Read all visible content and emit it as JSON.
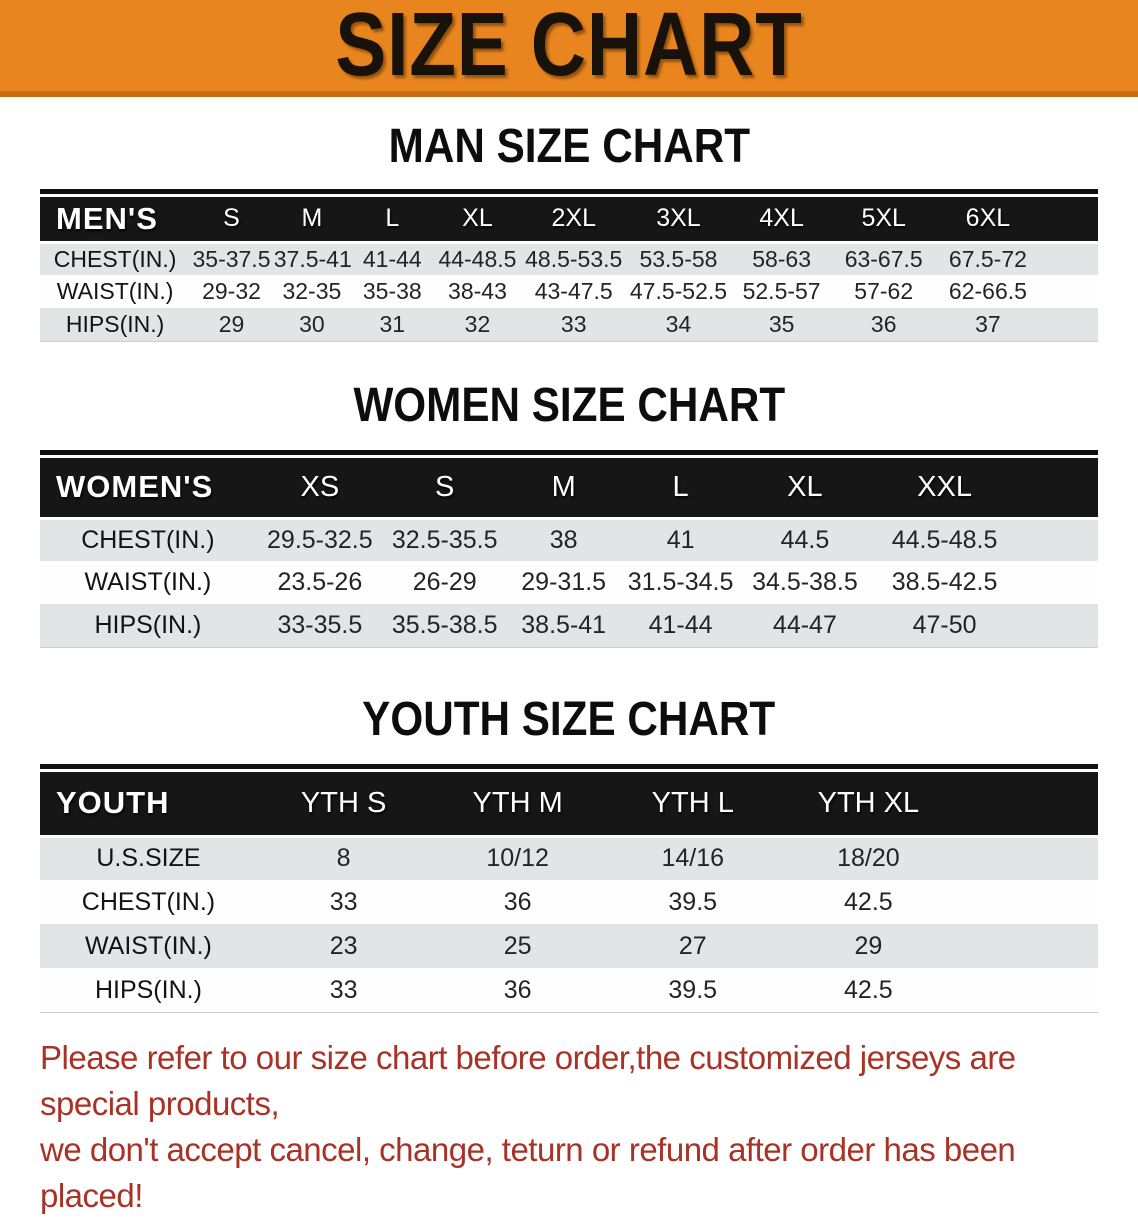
{
  "banner": {
    "title": "SIZE CHART",
    "colors": {
      "background": "#E8851E",
      "edge": "#C96E10",
      "text": "#19120B"
    }
  },
  "table_colors": {
    "header_bg": "#161616",
    "header_text": "#FFFFFF",
    "row_gray": "#E3E4E5",
    "row_white": "#FEFEFE"
  },
  "sections": {
    "men": {
      "heading": "MAN SIZE CHART",
      "table": {
        "header": [
          "MEN'S",
          "S",
          "M",
          "L",
          "XL",
          "2XL",
          "3XL",
          "4XL",
          "5XL",
          "6XL"
        ],
        "rows": [
          {
            "label": "CHEST(IN.)",
            "values": [
              "35-37.5",
              "37.5-41",
              "41-44",
              "44-48.5",
              "48.5-53.5",
              "53.5-58",
              "58-63",
              "63-67.5",
              "67.5-72"
            ]
          },
          {
            "label": "WAIST(IN.)",
            "values": [
              "29-32",
              "32-35",
              "35-38",
              "38-43",
              "43-47.5",
              "47.5-52.5",
              "52.5-57",
              "57-62",
              "62-66.5"
            ]
          },
          {
            "label": "HIPS(IN.)",
            "values": [
              "29",
              "30",
              "31",
              "32",
              "33",
              "34",
              "35",
              "36",
              "37"
            ]
          }
        ]
      }
    },
    "women": {
      "heading": "WOMEN SIZE CHART",
      "table": {
        "header": [
          "WOMEN'S",
          "XS",
          "S",
          "M",
          "L",
          "XL",
          "XXL"
        ],
        "rows": [
          {
            "label": "CHEST(IN.)",
            "values": [
              "29.5-32.5",
              "32.5-35.5",
              "38",
              "41",
              "44.5",
              "44.5-48.5"
            ]
          },
          {
            "label": "WAIST(IN.)",
            "values": [
              "23.5-26",
              "26-29",
              "29-31.5",
              "31.5-34.5",
              "34.5-38.5",
              "38.5-42.5"
            ]
          },
          {
            "label": "HIPS(IN.)",
            "values": [
              "33-35.5",
              "35.5-38.5",
              "38.5-41",
              "41-44",
              "44-47",
              "47-50"
            ]
          }
        ]
      }
    },
    "youth": {
      "heading": "YOUTH SIZE CHART",
      "table": {
        "header": [
          "YOUTH",
          "YTH S",
          "YTH M",
          "YTH L",
          "YTH XL"
        ],
        "rows": [
          {
            "label": "U.S.SIZE",
            "values": [
              "8",
              "10/12",
              "14/16",
              "18/20"
            ]
          },
          {
            "label": "CHEST(IN.)",
            "values": [
              "33",
              "36",
              "39.5",
              "42.5"
            ]
          },
          {
            "label": "WAIST(IN.)",
            "values": [
              "23",
              "25",
              "27",
              "29"
            ]
          },
          {
            "label": "HIPS(IN.)",
            "values": [
              "33",
              "36",
              "39.5",
              "42.5"
            ]
          }
        ]
      }
    }
  },
  "disclaimer": {
    "color": "#A93226",
    "lines": [
      "Please refer to our size chart before order,the customized jerseys are special products,",
      "we don't accept cancel, change, teturn or refund after order has been placed!"
    ]
  }
}
